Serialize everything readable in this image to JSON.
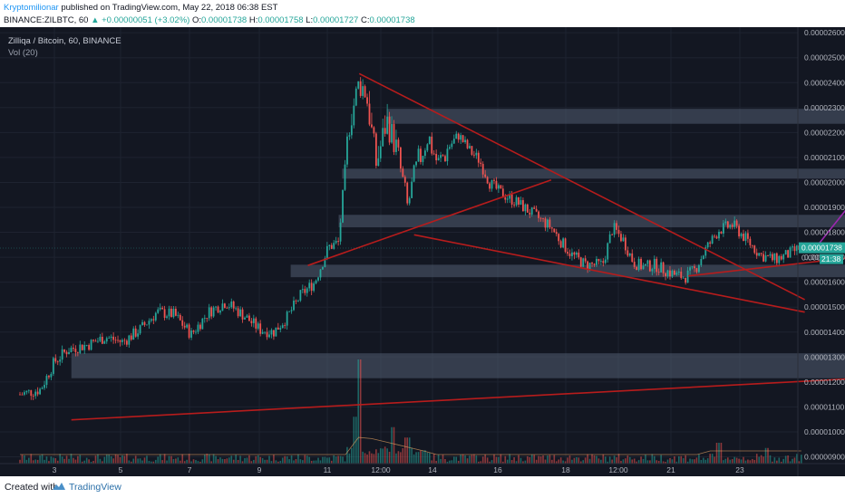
{
  "header": {
    "author": "Kryptomilionar",
    "published": " published on TradingView.com, May 22, 2018 06:38 EST",
    "ticker": "BINANCE:ZILBTC, 60 ",
    "change_arrow": "▲",
    "change": " +0.00000051 (+3.02%) ",
    "o_label": "O:",
    "o_value": "0.00001738",
    "h_label": " H:",
    "h_value": "0.00001758",
    "l_label": " L:",
    "l_value": "0.00001727",
    "c_label": " C:",
    "c_value": "0.00001738"
  },
  "chart_overlay": {
    "title": "Zilliqa / Bitcoin, 60, BINANCE",
    "vol_label": "Vol (20)"
  },
  "price_tags": {
    "last_price": "0.00001738",
    "countdown": "21:38",
    "hidden_level": "0.00001"
  },
  "footer": {
    "created_with": "Created with",
    "brand": "TradingView"
  },
  "colors": {
    "background": "#131722",
    "up_candle": "#26a69a",
    "down_candle": "#ef5350",
    "trendline": "#b71c1c",
    "target_arrow": "#9c27b0",
    "zone": "#4a5568",
    "price_tag": "#26a69a"
  },
  "chart_data": {
    "type": "candlestick",
    "title": "Zilliqa / Bitcoin, 60, BINANCE",
    "ylim": [
      8.8e-06,
      2.62e-05
    ],
    "y_ticks": [
      "0.00000900",
      "0.00001000",
      "0.00001100",
      "0.00001200",
      "0.00001300",
      "0.00001400",
      "0.00001500",
      "0.00001600",
      "0.00001700",
      "0.00001800",
      "0.00001900",
      "0.00002000",
      "0.00002100",
      "0.00002200",
      "0.00002300",
      "0.00002400",
      "0.00002500",
      "0.00002600"
    ],
    "x_ticks": [
      "3",
      "5",
      "7",
      "9",
      "11",
      "12:00",
      "14",
      "16",
      "18",
      "12:00",
      "21",
      "23"
    ],
    "close_trace": [
      [
        0.0,
        1.15e-05
      ],
      [
        0.6,
        1.17e-05
      ],
      [
        1.0,
        1.28e-05
      ],
      [
        1.4,
        1.33e-05
      ],
      [
        2.0,
        1.35e-05
      ],
      [
        2.5,
        1.38e-05
      ],
      [
        3.0,
        1.36e-05
      ],
      [
        3.5,
        1.41e-05
      ],
      [
        4.0,
        1.48e-05
      ],
      [
        4.5,
        1.47e-05
      ],
      [
        5.0,
        1.39e-05
      ],
      [
        5.5,
        1.48e-05
      ],
      [
        6.0,
        1.52e-05
      ],
      [
        6.5,
        1.47e-05
      ],
      [
        7.0,
        1.41e-05
      ],
      [
        7.4,
        1.4e-05
      ],
      [
        7.8,
        1.46e-05
      ],
      [
        8.2,
        1.55e-05
      ],
      [
        8.6,
        1.6e-05
      ],
      [
        9.0,
        1.74e-05
      ],
      [
        9.3,
        1.76e-05
      ],
      [
        9.6,
        2.23e-05
      ],
      [
        9.9,
        2.4e-05
      ],
      [
        10.1,
        2.36e-05
      ],
      [
        10.4,
        2.07e-05
      ],
      [
        10.7,
        2.25e-05
      ],
      [
        11.0,
        2.13e-05
      ],
      [
        11.3,
        1.9e-05
      ],
      [
        11.6,
        2.07e-05
      ],
      [
        11.9,
        2.19e-05
      ],
      [
        12.2,
        2.07e-05
      ],
      [
        12.5,
        2.14e-05
      ],
      [
        12.8,
        2.19e-05
      ],
      [
        13.1,
        2.13e-05
      ],
      [
        13.4,
        2.09e-05
      ],
      [
        13.7,
        2e-05
      ],
      [
        14.0,
        1.96e-05
      ],
      [
        14.5,
        1.92e-05
      ],
      [
        15.0,
        1.87e-05
      ],
      [
        15.5,
        1.82e-05
      ],
      [
        15.8,
        1.76e-05
      ],
      [
        16.1,
        1.71e-05
      ],
      [
        16.5,
        1.67e-05
      ],
      [
        17.0,
        1.67e-05
      ],
      [
        17.3,
        1.82e-05
      ],
      [
        17.6,
        1.77e-05
      ],
      [
        17.9,
        1.68e-05
      ],
      [
        18.2,
        1.66e-05
      ],
      [
        18.5,
        1.67e-05
      ],
      [
        18.8,
        1.65e-05
      ],
      [
        19.1,
        1.63e-05
      ],
      [
        19.4,
        1.62e-05
      ],
      [
        19.7,
        1.65e-05
      ],
      [
        20.0,
        1.73e-05
      ],
      [
        20.4,
        1.81e-05
      ],
      [
        20.8,
        1.83e-05
      ],
      [
        21.2,
        1.77e-05
      ],
      [
        21.6,
        1.71e-05
      ],
      [
        22.0,
        1.69e-05
      ],
      [
        22.4,
        1.71e-05
      ],
      [
        22.8,
        1.74e-05
      ]
    ],
    "volume_spikes": [
      [
        9.9,
        1.0
      ],
      [
        9.8,
        0.45
      ],
      [
        10.9,
        0.35
      ],
      [
        11.3,
        0.25
      ],
      [
        20.4,
        0.2
      ],
      [
        21.8,
        0.15
      ]
    ],
    "zones": [
      {
        "x": [
          10.7,
          25.5
        ],
        "y": [
          2.235e-05,
          2.295e-05
        ]
      },
      {
        "x": [
          9.4,
          25.3
        ],
        "y": [
          2.015e-05,
          2.055e-05
        ]
      },
      {
        "x": [
          9.3,
          25.2
        ],
        "y": [
          1.82e-05,
          1.87e-05
        ]
      },
      {
        "x": [
          7.9,
          24.4
        ],
        "y": [
          1.62e-05,
          1.67e-05
        ]
      },
      {
        "x": [
          1.5,
          26.2
        ],
        "y": [
          1.215e-05,
          1.315e-05
        ]
      }
    ],
    "trendlines": [
      {
        "from": [
          9.9,
          2.436e-05
        ],
        "to": [
          22.9,
          1.53e-05
        ]
      },
      {
        "from": [
          11.5,
          1.79e-05
        ],
        "to": [
          22.9,
          1.48e-05
        ]
      },
      {
        "from": [
          8.4,
          1.667e-05
        ],
        "to": [
          15.5,
          2.01e-05
        ]
      },
      {
        "from": [
          19.5,
          1.625e-05
        ],
        "to": [
          25.0,
          1.71e-05
        ]
      },
      {
        "from": [
          1.5,
          1.048e-05
        ],
        "to": [
          25.0,
          1.218e-05
        ]
      }
    ],
    "target_arrow": {
      "from": [
        23.2,
        1.735e-05
      ],
      "to": [
        24.8,
        2.01e-05
      ]
    },
    "last_price": 1.738e-05
  }
}
